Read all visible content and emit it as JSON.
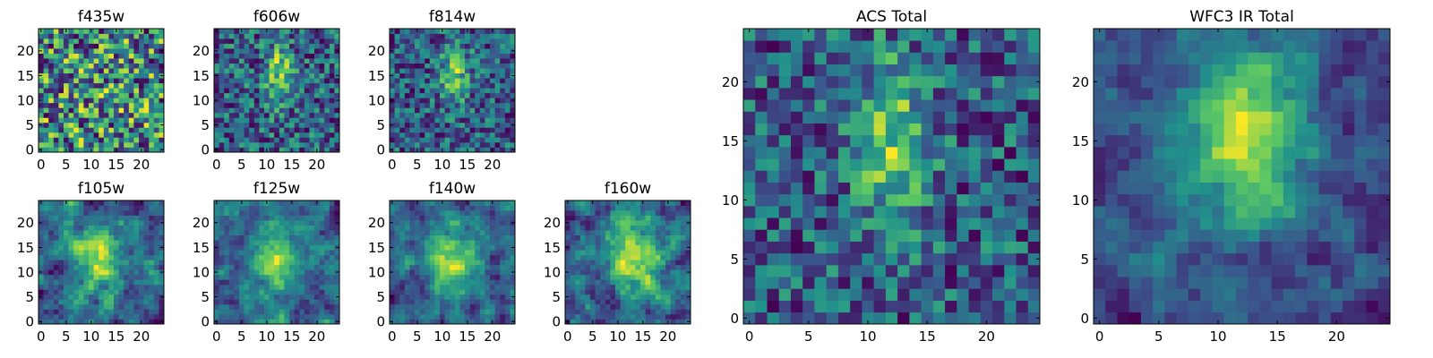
{
  "figure": {
    "background": "#ffffff"
  },
  "colormap": {
    "name": "viridis",
    "stops": [
      "#440154",
      "#3b528b",
      "#21918c",
      "#5ec962",
      "#fde725"
    ]
  },
  "chart_data": [
    {
      "type": "heatmap",
      "title": "f435w",
      "grid_size": 25,
      "xlim": [
        0,
        24
      ],
      "ylim": [
        0,
        24
      ],
      "xticks": [
        0,
        5,
        10,
        15,
        20
      ],
      "yticks": [
        0,
        5,
        10,
        15,
        20
      ],
      "xtick_labels": [
        "0",
        "5",
        "10",
        "15",
        "20"
      ],
      "ytick_labels": [
        "0",
        "5",
        "10",
        "15",
        "20"
      ],
      "model": {
        "seed": 11,
        "source": {
          "cx": 12,
          "cy": 12,
          "sx": 6,
          "sy": 6,
          "amp": 0.05
        },
        "noise": 0.55,
        "smooth": 0
      }
    },
    {
      "type": "heatmap",
      "title": "f606w",
      "grid_size": 25,
      "xlim": [
        0,
        24
      ],
      "ylim": [
        0,
        24
      ],
      "xticks": [
        0,
        5,
        10,
        15,
        20
      ],
      "yticks": [
        0,
        5,
        10,
        15,
        20
      ],
      "xtick_labels": [
        "0",
        "5",
        "10",
        "15",
        "20"
      ],
      "ytick_labels": [
        "0",
        "5",
        "10",
        "15",
        "20"
      ],
      "model": {
        "seed": 23,
        "source": {
          "cx": 12.5,
          "cy": 15.5,
          "sx": 1.8,
          "sy": 4.5,
          "amp": 0.55
        },
        "noise": 0.45,
        "smooth": 0
      }
    },
    {
      "type": "heatmap",
      "title": "f814w",
      "grid_size": 25,
      "xlim": [
        0,
        24
      ],
      "ylim": [
        0,
        24
      ],
      "xticks": [
        0,
        5,
        10,
        15,
        20
      ],
      "yticks": [
        0,
        5,
        10,
        15,
        20
      ],
      "xtick_labels": [
        "0",
        "5",
        "10",
        "15",
        "20"
      ],
      "ytick_labels": [
        "0",
        "5",
        "10",
        "15",
        "20"
      ],
      "model": {
        "seed": 37,
        "source": {
          "cx": 12.5,
          "cy": 15.5,
          "sx": 2,
          "sy": 4.5,
          "amp": 0.55
        },
        "noise": 0.45,
        "smooth": 0
      }
    },
    {
      "type": "heatmap",
      "title": "f105w",
      "grid_size": 25,
      "xlim": [
        0,
        24
      ],
      "ylim": [
        0,
        24
      ],
      "xticks": [
        0,
        5,
        10,
        15,
        20
      ],
      "yticks": [
        0,
        5,
        10,
        15,
        20
      ],
      "xtick_labels": [
        "0",
        "5",
        "10",
        "15",
        "20"
      ],
      "ytick_labels": [
        "0",
        "5",
        "10",
        "15",
        "20"
      ],
      "model": {
        "seed": 41,
        "source": {
          "cx": 12,
          "cy": 13,
          "sx": 3,
          "sy": 5,
          "amp": 0.45
        },
        "noise": 0.5,
        "smooth": 1
      }
    },
    {
      "type": "heatmap",
      "title": "f125w",
      "grid_size": 25,
      "xlim": [
        0,
        24
      ],
      "ylim": [
        0,
        24
      ],
      "xticks": [
        0,
        5,
        10,
        15,
        20
      ],
      "yticks": [
        0,
        5,
        10,
        15,
        20
      ],
      "xtick_labels": [
        "0",
        "5",
        "10",
        "15",
        "20"
      ],
      "ytick_labels": [
        "0",
        "5",
        "10",
        "15",
        "20"
      ],
      "model": {
        "seed": 53,
        "source": {
          "cx": 12,
          "cy": 12,
          "sx": 3,
          "sy": 5,
          "amp": 0.4
        },
        "noise": 0.5,
        "smooth": 1
      }
    },
    {
      "type": "heatmap",
      "title": "f140w",
      "grid_size": 25,
      "xlim": [
        0,
        24
      ],
      "ylim": [
        0,
        24
      ],
      "xticks": [
        0,
        5,
        10,
        15,
        20
      ],
      "yticks": [
        0,
        5,
        10,
        15,
        20
      ],
      "xtick_labels": [
        "0",
        "5",
        "10",
        "15",
        "20"
      ],
      "ytick_labels": [
        "0",
        "5",
        "10",
        "15",
        "20"
      ],
      "model": {
        "seed": 67,
        "source": {
          "cx": 12,
          "cy": 13,
          "sx": 3,
          "sy": 5,
          "amp": 0.45
        },
        "noise": 0.5,
        "smooth": 1
      }
    },
    {
      "type": "heatmap",
      "title": "f160w",
      "grid_size": 25,
      "xlim": [
        0,
        24
      ],
      "ylim": [
        0,
        24
      ],
      "xticks": [
        0,
        5,
        10,
        15,
        20
      ],
      "yticks": [
        0,
        5,
        10,
        15,
        20
      ],
      "xtick_labels": [
        "0",
        "5",
        "10",
        "15",
        "20"
      ],
      "ytick_labels": [
        "0",
        "5",
        "10",
        "15",
        "20"
      ],
      "model": {
        "seed": 79,
        "source": {
          "cx": 13,
          "cy": 13,
          "sx": 3,
          "sy": 5,
          "amp": 0.5
        },
        "noise": 0.5,
        "smooth": 1
      }
    },
    {
      "type": "heatmap",
      "title": "ACS Total",
      "grid_size": 25,
      "xlim": [
        0,
        24
      ],
      "ylim": [
        0,
        24
      ],
      "xticks": [
        0,
        5,
        10,
        15,
        20
      ],
      "yticks": [
        0,
        5,
        10,
        15,
        20
      ],
      "xtick_labels": [
        "0",
        "5",
        "10",
        "15",
        "20"
      ],
      "ytick_labels": [
        "0",
        "5",
        "10",
        "15",
        "20"
      ],
      "model": {
        "seed": 97,
        "source": {
          "cx": 12,
          "cy": 15,
          "sx": 2.2,
          "sy": 5,
          "amp": 0.6
        },
        "noise": 0.45,
        "smooth": 0
      }
    },
    {
      "type": "heatmap",
      "title": "WFC3 IR Total",
      "grid_size": 25,
      "xlim": [
        0,
        24
      ],
      "ylim": [
        0,
        24
      ],
      "xticks": [
        0,
        5,
        10,
        15,
        20
      ],
      "yticks": [
        0,
        5,
        10,
        15,
        20
      ],
      "xtick_labels": [
        "0",
        "5",
        "10",
        "15",
        "20"
      ],
      "ytick_labels": [
        "0",
        "5",
        "10",
        "15",
        "20"
      ],
      "model": {
        "seed": 131,
        "source": {
          "cx": 12,
          "cy": 15,
          "sx": 3.5,
          "sy": 5.5,
          "amp": 0.6
        },
        "noise": 0.4,
        "smooth": 1
      }
    }
  ]
}
